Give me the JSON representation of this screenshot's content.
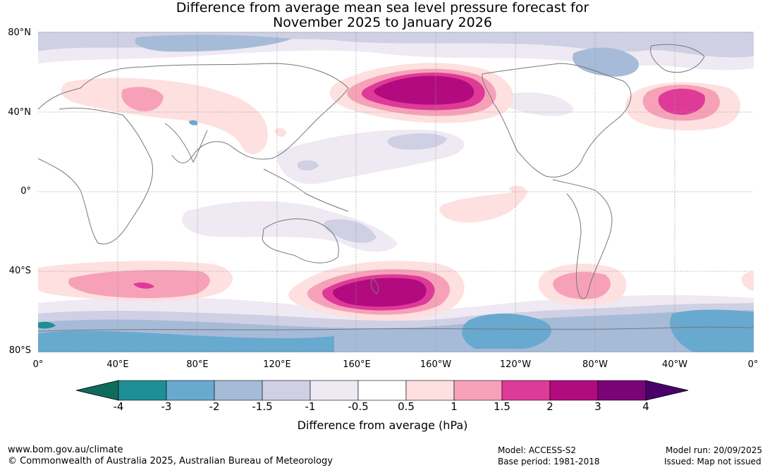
{
  "title": {
    "line1": "Difference from average mean sea level pressure forecast for",
    "line2": "November 2025 to January 2026"
  },
  "axes": {
    "lat_labels": [
      "80°N",
      "40°N",
      "0°",
      "40°S",
      "80°S"
    ],
    "lon_labels": [
      "0°",
      "40°E",
      "80°E",
      "120°E",
      "160°E",
      "160°W",
      "120°W",
      "80°W",
      "40°W",
      "0°"
    ]
  },
  "colorbar": {
    "title": "Difference from average (hPa)",
    "tick_labels": [
      "-4",
      "-3",
      "-2",
      "-1.5",
      "-1",
      "-0.5",
      "0.5",
      "1",
      "1.5",
      "2",
      "3",
      "4"
    ],
    "colors": {
      "below_min": "#0f6b5c",
      "bins": [
        "#1e8f96",
        "#68a9d0",
        "#a6bbd8",
        "#cfd0e4",
        "#efe9f3",
        "#ffffff",
        "#fde0df",
        "#f7a1b9",
        "#de3a98",
        "#b10b7f",
        "#7a0477"
      ],
      "above_max": "#4a006a"
    }
  },
  "footer": {
    "website": "www.bom.gov.au/climate",
    "copyright": "© Commonwealth of Australia 2025, Australian Bureau of Meteorology",
    "model": "Model: ACCESS-S2",
    "base_period": "Base period: 1981-2018",
    "model_run": "Model run: 20/09/2025",
    "issued": "Issued: Map not issued"
  }
}
